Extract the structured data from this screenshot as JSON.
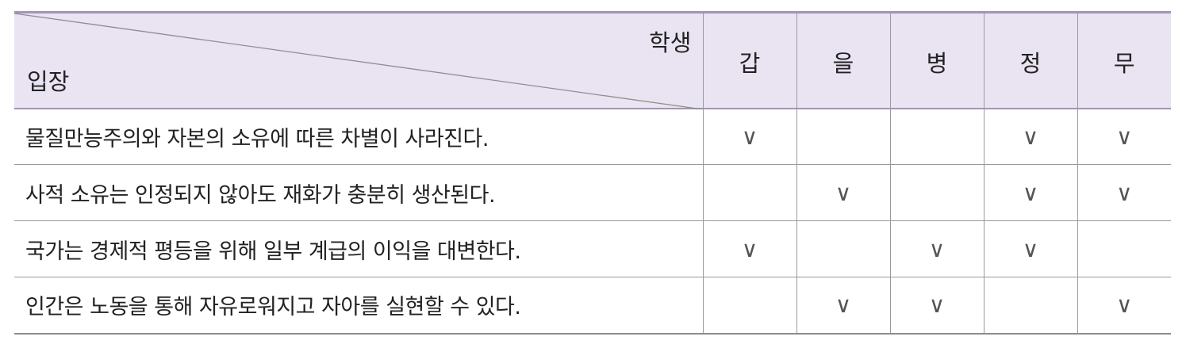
{
  "table": {
    "corner_top_label": "학생",
    "corner_bottom_label": "입장",
    "students": [
      "갑",
      "을",
      "병",
      "정",
      "무"
    ],
    "check_symbol": "∨",
    "rows": [
      {
        "statement": "물질만능주의와 자본의 소유에 따른 차별이 사라진다.",
        "marks": [
          "∨",
          "",
          "",
          "∨",
          "∨"
        ]
      },
      {
        "statement": "사적 소유는 인정되지 않아도 재화가 충분히 생산된다.",
        "marks": [
          "",
          "∨",
          "",
          "∨",
          "∨"
        ]
      },
      {
        "statement": "국가는 경제적 평등을 위해 일부 계급의 이익을 대변한다.",
        "marks": [
          "∨",
          "",
          "∨",
          "∨",
          ""
        ]
      },
      {
        "statement": "인간은 노동을 통해 자유로워지고 자아를 실현할 수 있다.",
        "marks": [
          "",
          "∨",
          "∨",
          "",
          "∨"
        ]
      }
    ]
  }
}
